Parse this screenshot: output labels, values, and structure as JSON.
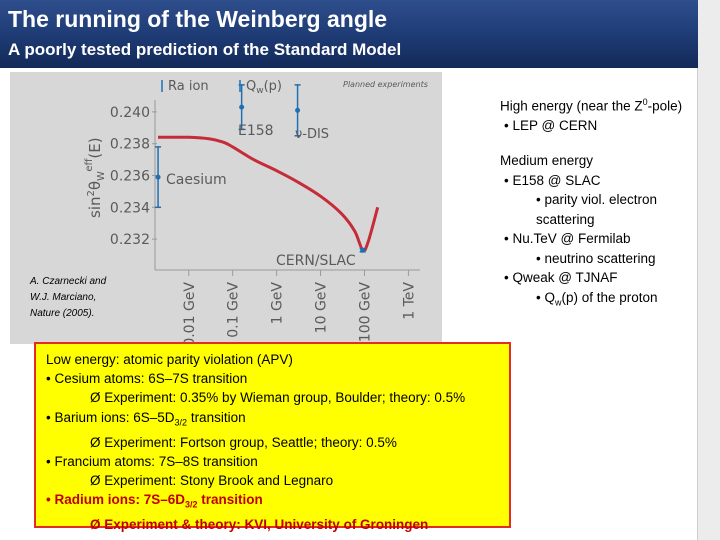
{
  "slide": {
    "title": "The running of the Weinberg angle",
    "subtitle": "A poorly tested prediction of the Standard Model"
  },
  "figure": {
    "labels": {
      "ra_ion": "Ra ion",
      "qw_p_main": "Q",
      "qw_p_sub": "w",
      "qw_p_end": "(p)",
      "planned": "Planned experiments",
      "e158": "E158",
      "nu_dis": "ν-DIS",
      "caesium": "Caesium",
      "cern_slac": "CERN/SLAC"
    },
    "ylabel_main": "sin",
    "ylabel_sup": "2",
    "ylabel_theta": "θ",
    "ylabel_sub": "W",
    "ylabel_eff": "eff",
    "ylabel_end": "(E)",
    "y_ticks": [
      "0.240",
      "0.238",
      "0.236",
      "0.234",
      "0.232"
    ],
    "x_ticks": [
      "0.01 GeV",
      "0.1 GeV",
      "1 GeV",
      "10 GeV",
      "100 GeV",
      "1 TeV"
    ],
    "citation": [
      "A. Czarnecki and",
      "W.J. Marciano,",
      "Nature (2005)."
    ]
  },
  "chart_data": {
    "type": "line",
    "x_scale": "log",
    "x_unit": "GeV",
    "ylim": [
      0.231,
      0.241
    ],
    "series": [
      {
        "x": [
          0.002,
          0.01,
          0.03,
          0.06,
          0.1,
          0.3,
          1,
          3,
          10,
          30,
          60,
          91,
          120,
          200
        ],
        "y": [
          0.2384,
          0.2384,
          0.2383,
          0.2381,
          0.2378,
          0.237,
          0.2363,
          0.2356,
          0.2347,
          0.2336,
          0.2325,
          0.2313,
          0.2318,
          0.234
        ]
      }
    ],
    "points": [
      {
        "label": "E158",
        "x": 0.16,
        "y": 0.2403,
        "err": 0.0014
      },
      {
        "label": "ν-DIS",
        "x": 3.0,
        "y": 0.2401,
        "err": 0.0016
      },
      {
        "label": "Caesium",
        "x": 0.002,
        "y": 0.2359,
        "err": 0.0019
      },
      {
        "label": "CERN/SLAC",
        "x": 91,
        "y": 0.2313,
        "err": 0.0001
      }
    ]
  },
  "right": {
    "high_title": "High energy",
    "high_rest": " (near the Z",
    "high_sup": "0",
    "high_end": "-pole)",
    "high_items": [
      "• LEP @ CERN"
    ],
    "medium_title": "Medium energy",
    "medium_lines": [
      "• E158 @ SLAC",
      "• parity viol. electron",
      "scattering",
      "• Nu.TeV @ Fermilab",
      "• neutrino scattering",
      "• Qweak @ TJNAF",
      "• Q",
      "w",
      "(p) of the proton"
    ]
  },
  "apv": {
    "l1": "Low energy: atomic parity violation (APV)",
    "l2": "• Cesium atoms: 6S–7S transition",
    "l3": "Ø  Experiment: 0.35% by Wieman group, Boulder; theory: 0.5%",
    "l4a": "• Barium ions: 6S–5D",
    "l4sub": "3/2",
    "l4b": " transition",
    "l5": "Ø  Experiment: Fortson group, Seattle; theory: 0.5%",
    "l6": "• Francium atoms: 7S–8S transition",
    "l7": "Ø  Experiment: Stony Brook and Legnaro",
    "l8a": "• Radium ions: 7S–6D",
    "l8sub": "3/2",
    "l8b": " transition",
    "l9": "Ø  Experiment & theory: KVI, University of Groningen"
  },
  "colors": {
    "header": "#1d3a73",
    "curve": "#c62b3a",
    "points": "#1f6fb2",
    "box_fill": "#ffff00",
    "box_border": "#e32c22",
    "radium_text": "#c00000"
  }
}
